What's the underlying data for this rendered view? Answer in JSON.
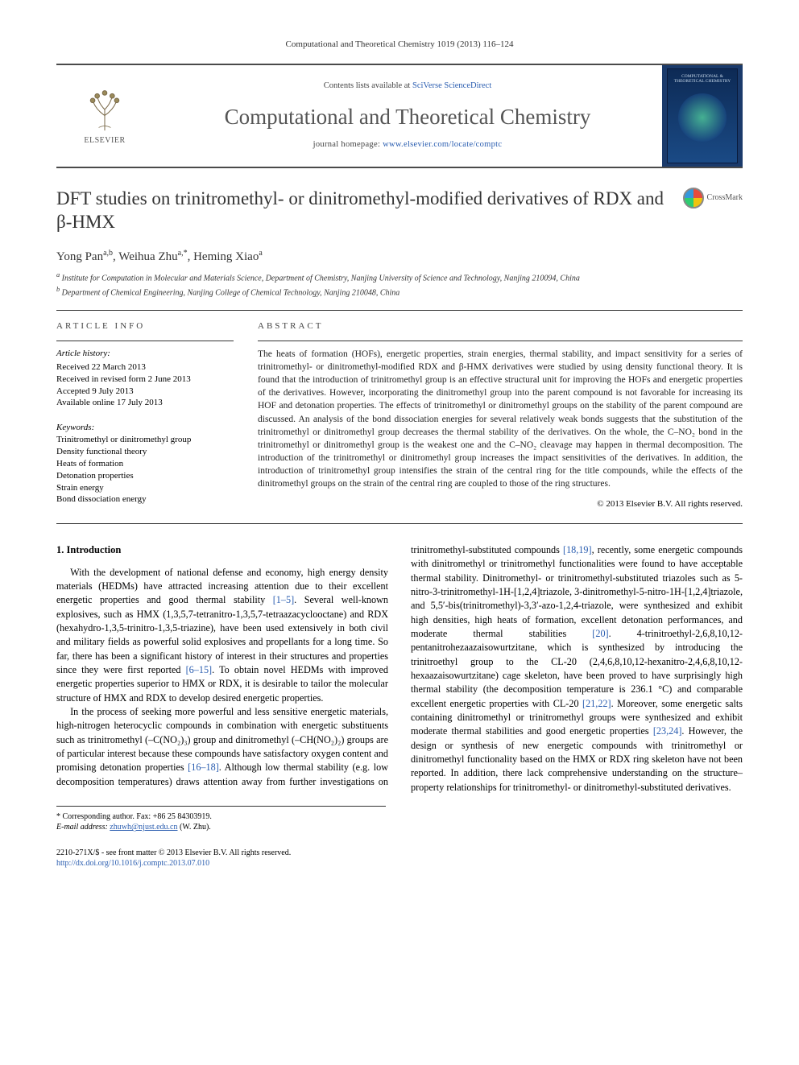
{
  "running_head": "Computational and Theoretical Chemistry 1019 (2013) 116–124",
  "banner": {
    "publisher_label": "ELSEVIER",
    "contents_prefix": "Contents lists available at ",
    "contents_link": "SciVerse ScienceDirect",
    "journal_title": "Computational and Theoretical Chemistry",
    "homepage_prefix": "journal homepage: ",
    "homepage_url": "www.elsevier.com/locate/comptc",
    "cover_text": "COMPUTATIONAL & THEORETICAL CHEMISTRY"
  },
  "article": {
    "title": "DFT studies on trinitromethyl- or dinitromethyl-modified derivatives of RDX and β-HMX",
    "crossmark_label": "CrossMark",
    "authors_html": "Yong Pan<sup>a,b</sup>, Weihua Zhu<sup>a,*</sup>, Heming Xiao<sup>a</sup>",
    "affiliations": [
      "Institute for Computation in Molecular and Materials Science, Department of Chemistry, Nanjing University of Science and Technology, Nanjing 210094, China",
      "Department of Chemical Engineering, Nanjing College of Chemical Technology, Nanjing 210048, China"
    ],
    "affil_sup": [
      "a",
      "b"
    ]
  },
  "info": {
    "head": "ARTICLE INFO",
    "history_head": "Article history:",
    "history": [
      "Received 22 March 2013",
      "Received in revised form 2 June 2013",
      "Accepted 9 July 2013",
      "Available online 17 July 2013"
    ],
    "keywords_head": "Keywords:",
    "keywords": [
      "Trinitromethyl or dinitromethyl group",
      "Density functional theory",
      "Heats of formation",
      "Detonation properties",
      "Strain energy",
      "Bond dissociation energy"
    ]
  },
  "abstract": {
    "head": "ABSTRACT",
    "text": "The heats of formation (HOFs), energetic properties, strain energies, thermal stability, and impact sensitivity for a series of trinitromethyl- or dinitromethyl-modified RDX and β-HMX derivatives were studied by using density functional theory. It is found that the introduction of trinitromethyl group is an effective structural unit for improving the HOFs and energetic properties of the derivatives. However, incorporating the dinitromethyl group into the parent compound is not favorable for increasing its HOF and detonation properties. The effects of trinitromethyl or dinitromethyl groups on the stability of the parent compound are discussed. An analysis of the bond dissociation energies for several relatively weak bonds suggests that the substitution of the trinitromethyl or dinitromethyl group decreases the thermal stability of the derivatives. On the whole, the C–NO₂ bond in the trinitromethyl or dinitromethyl group is the weakest one and the C–NO₂ cleavage may happen in thermal decomposition. The introduction of the trinitromethyl or dinitromethyl group increases the impact sensitivities of the derivatives. In addition, the introduction of trinitromethyl group intensifies the strain of the central ring for the title compounds, while the effects of the dinitromethyl groups on the strain of the central ring are coupled to those of the ring structures.",
    "copyright": "© 2013 Elsevier B.V. All rights reserved."
  },
  "body": {
    "section_num": "1.",
    "section_title": "Introduction",
    "p1_a": "With the development of national defense and economy, high energy density materials (HEDMs) have attracted increasing attention due to their excellent energetic properties and good thermal stability ",
    "ref1": "[1–5]",
    "p1_b": ". Several well-known explosives, such as HMX (1,3,5,7-tetranitro-1,3,5,7-tetraazacyclooctane) and RDX (hexahydro-1,3,5-trinitro-1,3,5-triazine), have been used extensively in both civil and military fields as powerful solid explosives and propellants for a long time. So far, there has been a significant history of interest in their structures and properties since they were first reported ",
    "ref2": "[6–15]",
    "p1_c": ". To obtain novel HEDMs with improved energetic properties superior to HMX or RDX, it is desirable to tailor the molecular structure of HMX and RDX to develop desired energetic properties.",
    "p2_a": "In the process of seeking more powerful and less sensitive energetic materials, high-nitrogen heterocyclic compounds in combination with energetic substituents such as trinitromethyl (–C(NO₂)₃) group and dinitromethyl (–CH(NO₂)₂) groups are of particular interest because these compounds have satisfactory oxygen content and promising detonation properties ",
    "ref3": "[16–18]",
    "p2_b": ". Although low thermal stability (e.g. low decomposition temperatures) draws attention away from further investigations on trinitromethyl-substituted compounds ",
    "ref4": "[18,19]",
    "p2_c": ", recently, some energetic compounds with dinitromethyl or trinitromethyl functionalities were found to have acceptable thermal stability. Dinitromethyl- or trinitromethyl-substituted triazoles such as 5-nitro-3-trinitromethyl-1H-[1,2,4]triazole, 3-dinitromethyl-5-nitro-1H-[1,2,4]triazole, and 5,5′-bis(trinitromethyl)-3,3′-azo-1,2,4-triazole, were synthesized and exhibit high densities, high heats of formation, excellent detonation performances, and moderate thermal stabilities ",
    "ref5": "[20]",
    "p2_d": ". 4-trinitroethyl-2,6,8,10,12-pentanitrohezaazaisowurtzitane, which is synthesized by introducing the trinitroethyl group to the CL-20 (2,4,6,8,10,12-hexanitro-2,4,6,8,10,12-hexaazaisowurtzitane) cage skeleton, have been proved to have surprisingly high thermal stability (the decomposition temperature is 236.1 °C) and comparable excellent energetic properties with CL-20 ",
    "ref6": "[21,22]",
    "p2_e": ". Moreover, some energetic salts containing dinitromethyl or trinitromethyl groups were synthesized and exhibit moderate thermal stabilities and good energetic properties ",
    "ref7": "[23,24]",
    "p2_f": ". However, the design or synthesis of new energetic compounds with trinitromethyl or dinitromethyl functionality based on the HMX or RDX ring skeleton have not been reported. In addition, there lack comprehensive understanding on the structure–property relationships for trinitromethyl- or dinitromethyl-substituted derivatives."
  },
  "footnotes": {
    "corr_label": "* Corresponding author. Fax: +86 25 84303919.",
    "email_label": "E-mail address:",
    "email": "zhuwh@njust.edu.cn",
    "email_who": "(W. Zhu)."
  },
  "footer": {
    "line1": "2210-271X/$ - see front matter © 2013 Elsevier B.V. All rights reserved.",
    "doi_label": "http://dx.doi.org/10.1016/j.comptc.2013.07.010"
  },
  "colors": {
    "link": "#2a5db0",
    "rule": "#4a4a4a",
    "cover_bg": "#1a3a6b"
  }
}
